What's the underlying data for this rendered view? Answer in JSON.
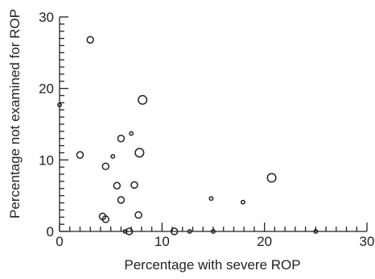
{
  "chart_data": {
    "type": "scatter",
    "title": "",
    "xlabel": "Percentage with severe ROP",
    "ylabel": "Percentage not examined for ROP",
    "xlim": [
      0,
      30
    ],
    "ylim": [
      0,
      30
    ],
    "x_ticks": [
      "0",
      "10",
      "20",
      "30"
    ],
    "y_ticks": [
      "0",
      "10",
      "20",
      "30"
    ],
    "grid": false,
    "legend": "none",
    "marker": "open-circle",
    "marker_size_encodes_value": true,
    "colors": {
      "ink": "#222222",
      "background": "#ffffff"
    },
    "points": [
      {
        "x": 0.0,
        "y": 17.7,
        "size": 1
      },
      {
        "x": 2.0,
        "y": 10.7,
        "size": 2
      },
      {
        "x": 3.0,
        "y": 26.8,
        "size": 2
      },
      {
        "x": 4.2,
        "y": 2.1,
        "size": 2
      },
      {
        "x": 4.5,
        "y": 9.1,
        "size": 2
      },
      {
        "x": 4.5,
        "y": 1.7,
        "size": 2
      },
      {
        "x": 5.2,
        "y": 10.5,
        "size": 1
      },
      {
        "x": 5.6,
        "y": 6.4,
        "size": 2
      },
      {
        "x": 6.0,
        "y": 13.0,
        "size": 2
      },
      {
        "x": 6.0,
        "y": 4.4,
        "size": 2
      },
      {
        "x": 6.4,
        "y": 0.0,
        "size": 1
      },
      {
        "x": 6.8,
        "y": 0.0,
        "size": 2
      },
      {
        "x": 7.0,
        "y": 13.7,
        "size": 1
      },
      {
        "x": 7.3,
        "y": 6.5,
        "size": 2
      },
      {
        "x": 7.7,
        "y": 2.3,
        "size": 2
      },
      {
        "x": 7.8,
        "y": 11.0,
        "size": 3
      },
      {
        "x": 8.1,
        "y": 18.4,
        "size": 3
      },
      {
        "x": 11.2,
        "y": 0.0,
        "size": 2
      },
      {
        "x": 12.7,
        "y": 0.0,
        "size": 1
      },
      {
        "x": 14.8,
        "y": 4.6,
        "size": 1
      },
      {
        "x": 15.0,
        "y": 0.0,
        "size": 1
      },
      {
        "x": 17.9,
        "y": 4.1,
        "size": 1
      },
      {
        "x": 20.7,
        "y": 7.5,
        "size": 3
      },
      {
        "x": 25.0,
        "y": 0.0,
        "size": 1
      }
    ]
  }
}
